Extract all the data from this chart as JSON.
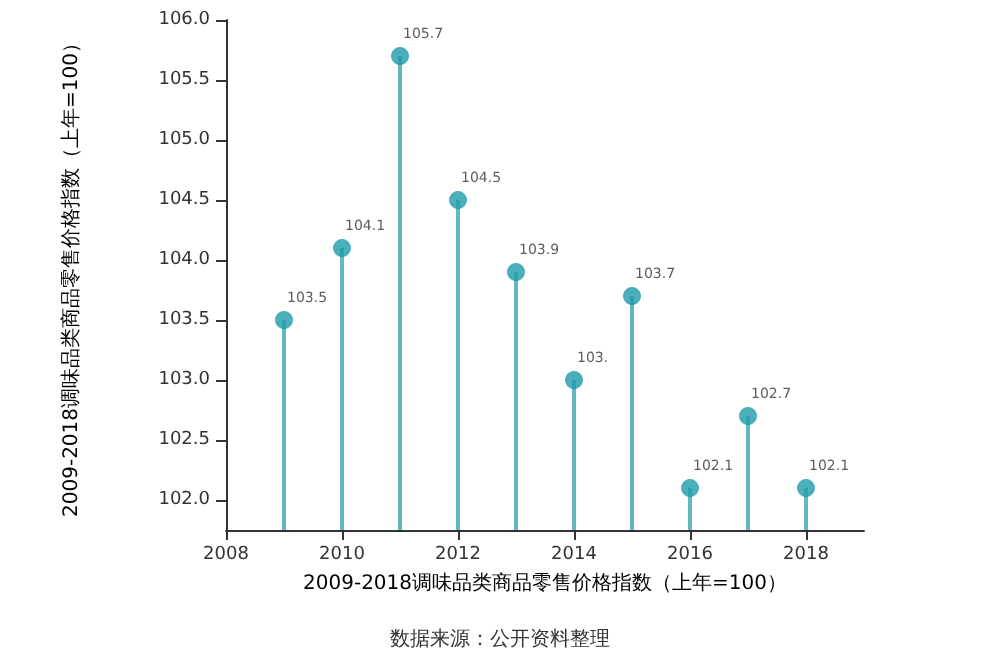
{
  "chart_data": {
    "type": "lollipop",
    "xlabel": "2009-2018调味品类商品零售价格指数（上年=100）",
    "ylabel": "2009-2018调味品类商品零售价格指数（上年=100）",
    "annotations": [
      "数据来源：公开资料整理"
    ],
    "x": [
      2009,
      2010,
      2011,
      2012,
      2013,
      2014,
      2015,
      2016,
      2017,
      2018
    ],
    "values": [
      103.5,
      104.1,
      105.7,
      104.5,
      103.9,
      103.0,
      103.7,
      102.1,
      102.7,
      102.1
    ],
    "value_labels": [
      "103.5",
      "104.1",
      "105.7",
      "104.5",
      "103.9",
      "103.",
      "103.7",
      "102.1",
      "102.7",
      "102.1"
    ],
    "color": "#1e9aaa",
    "xlim": [
      2008,
      2019
    ],
    "xticks": [
      2008,
      2010,
      2012,
      2014,
      2016,
      2018
    ],
    "ylim": [
      101.75,
      106
    ],
    "yticks": [
      {
        "value": 102,
        "label": "102.0"
      },
      {
        "value": 102.5,
        "label": "102.5"
      },
      {
        "value": 103,
        "label": "103.0"
      },
      {
        "value": 103.5,
        "label": "103.5"
      },
      {
        "value": 104,
        "label": "104.0"
      },
      {
        "value": 104.5,
        "label": "104.5"
      },
      {
        "value": 105,
        "label": "105.0"
      },
      {
        "value": 105.5,
        "label": "105.5"
      },
      {
        "value": 106,
        "label": "106.0"
      }
    ],
    "marker": "circle",
    "grid": false
  }
}
